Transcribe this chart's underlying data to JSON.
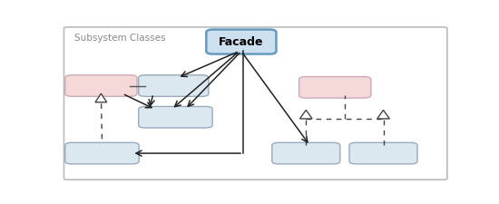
{
  "fig_width": 5.5,
  "fig_height": 2.25,
  "dpi": 100,
  "bg_color": "#f0f0f0",
  "border_color": "#bbbbbb",
  "box_blue_face": "#dce8f0",
  "box_blue_edge": "#99aabc",
  "box_pink_face": "#f5d8d8",
  "box_pink_edge": "#ccaabb",
  "facade_face": "#cce0f0",
  "facade_edge": "#6699bb",
  "subsystem_label": "Subsystem Classes",
  "facade_label": "Facade",
  "boxes": {
    "facade": [
      0.39,
      0.83,
      0.145,
      0.12
    ],
    "pink1": [
      0.025,
      0.56,
      0.15,
      0.1
    ],
    "blue1": [
      0.215,
      0.56,
      0.145,
      0.1
    ],
    "blue2": [
      0.215,
      0.36,
      0.155,
      0.1
    ],
    "blue3": [
      0.025,
      0.13,
      0.155,
      0.1
    ],
    "pink2": [
      0.63,
      0.55,
      0.15,
      0.1
    ],
    "blue4": [
      0.56,
      0.13,
      0.14,
      0.1
    ],
    "blue5": [
      0.76,
      0.13,
      0.14,
      0.1
    ]
  }
}
